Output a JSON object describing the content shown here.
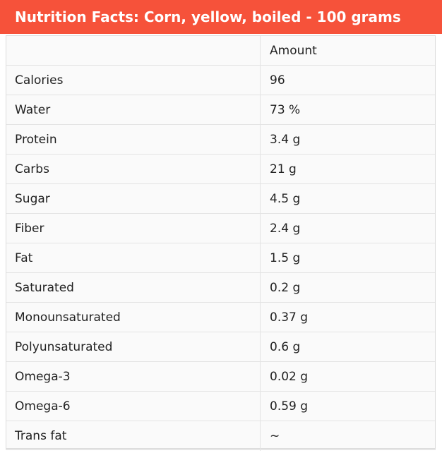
{
  "colors": {
    "accent": "#f6523a"
  },
  "header": {
    "title": "Nutrition Facts: Corn, yellow, boiled - 100 grams"
  },
  "table": {
    "column_headers": [
      "",
      "Amount"
    ],
    "rows": [
      {
        "nutrient": "Calories",
        "amount": "96"
      },
      {
        "nutrient": "Water",
        "amount": "73 %"
      },
      {
        "nutrient": "Protein",
        "amount": "3.4 g"
      },
      {
        "nutrient": "Carbs",
        "amount": "21 g"
      },
      {
        "nutrient": "Sugar",
        "amount": "4.5 g"
      },
      {
        "nutrient": "Fiber",
        "amount": "2.4 g"
      },
      {
        "nutrient": "Fat",
        "amount": "1.5 g"
      },
      {
        "nutrient": "Saturated",
        "amount": "0.2 g"
      },
      {
        "nutrient": "Monounsaturated",
        "amount": "0.37 g"
      },
      {
        "nutrient": "Polyunsaturated",
        "amount": "0.6 g"
      },
      {
        "nutrient": "Omega-3",
        "amount": "0.02 g"
      },
      {
        "nutrient": "Omega-6",
        "amount": "0.59 g"
      },
      {
        "nutrient": "Trans fat",
        "amount": "~"
      }
    ]
  }
}
